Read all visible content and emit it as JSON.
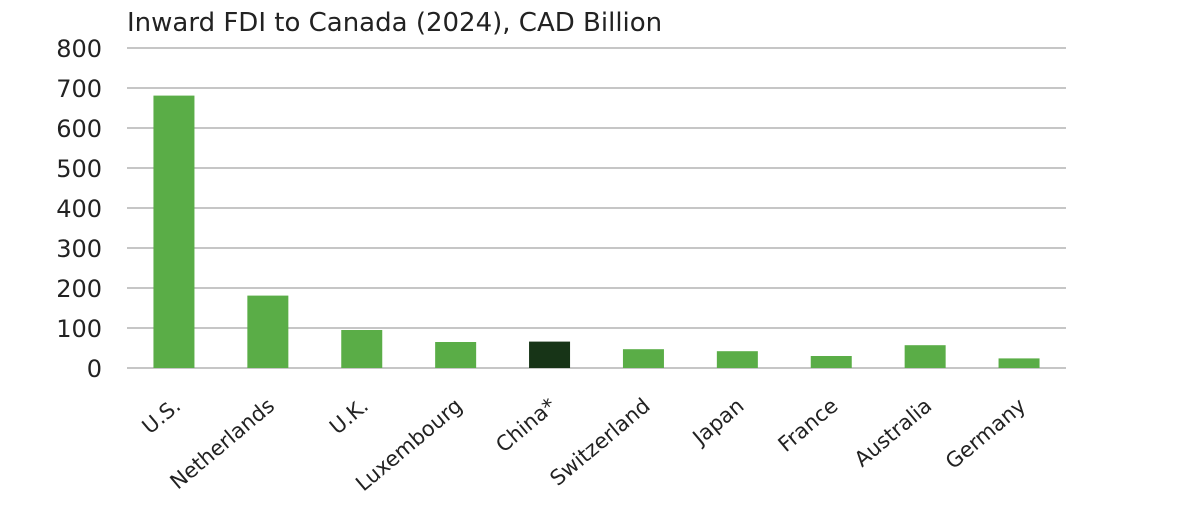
{
  "chart_data": {
    "type": "bar",
    "title": "Inward FDI to Canada (2024), CAD Billion",
    "xlabel": "",
    "ylabel": "",
    "ylim": [
      0,
      800
    ],
    "yticks": [
      "0",
      "100",
      "200",
      "300",
      "400",
      "500",
      "600",
      "700",
      "800"
    ],
    "grid": true,
    "categories": [
      "U.S.",
      "Netherlands",
      "U.K.",
      "Luxembourg",
      "China*",
      "Switzerland",
      "Japan",
      "France",
      "Australia",
      "Germany"
    ],
    "values": [
      681,
      181,
      95,
      65,
      66,
      47,
      42,
      30,
      57,
      24
    ],
    "colors": {
      "bar": "#5aad47",
      "highlight": "#173417",
      "highlight_category": "China*"
    }
  }
}
